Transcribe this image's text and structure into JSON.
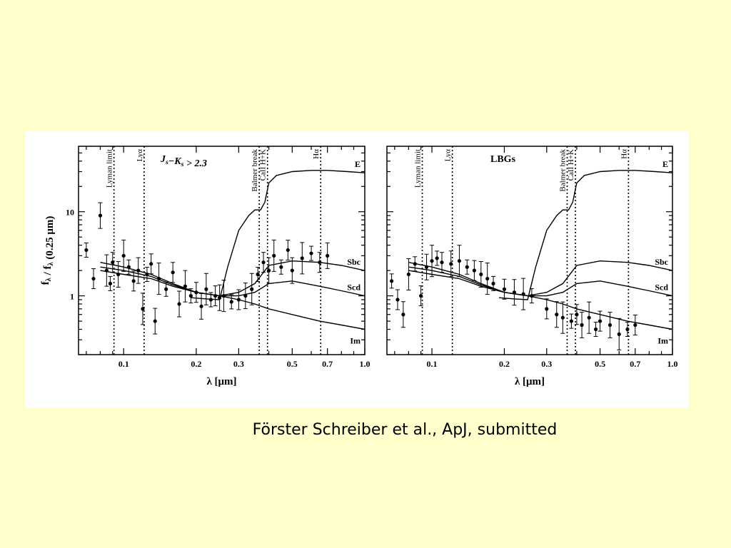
{
  "caption": "Förster Schreiber et al., ApJ, submitted",
  "chart_data": [
    {
      "type": "scatter",
      "title": "J_s−K_s > 2.3",
      "xlabel": "λ [μm]",
      "ylabel": "f_λ / f_λ (0.25 μm)",
      "x_scale": "log",
      "y_scale": "log",
      "xlim": [
        0.065,
        1.0
      ],
      "ylim": [
        0.2,
        60
      ],
      "x_ticks": [
        0.1,
        0.2,
        0.3,
        0.5,
        0.7,
        1.0
      ],
      "x_tick_labels": [
        "0.1",
        "0.2",
        "0.3",
        "0.5",
        "0.7",
        "1.0"
      ],
      "y_ticks": [
        1,
        10
      ],
      "y_tick_labels": [
        "1",
        "10"
      ],
      "feature_lines": [
        {
          "x": 0.0912,
          "label": "Lyman limit"
        },
        {
          "x": 0.1216,
          "label": "Lyα"
        },
        {
          "x": 0.365,
          "label": "Balmer break"
        },
        {
          "x": 0.395,
          "label": "CaII H+K"
        },
        {
          "x": 0.6563,
          "label": "Hα"
        }
      ],
      "templates": [
        {
          "name": "E",
          "x": [
            0.19,
            0.22,
            0.25,
            0.27,
            0.3,
            0.33,
            0.35,
            0.37,
            0.385,
            0.4,
            0.43,
            0.5,
            0.6,
            0.7,
            0.85,
            1.0
          ],
          "y": [
            0.95,
            0.92,
            0.9,
            2.2,
            6.0,
            9.0,
            10.5,
            10.5,
            13.0,
            22.0,
            27.0,
            30.0,
            31.0,
            31.0,
            30.0,
            29.0
          ]
        },
        {
          "name": "Sbc",
          "x": [
            0.08,
            0.1,
            0.13,
            0.16,
            0.2,
            0.25,
            0.3,
            0.35,
            0.4,
            0.5,
            0.65,
            0.8,
            1.0
          ],
          "y": [
            2.5,
            2.2,
            1.8,
            1.4,
            1.1,
            1.0,
            1.1,
            1.4,
            2.3,
            2.6,
            2.5,
            2.3,
            2.0
          ]
        },
        {
          "name": "Scd",
          "x": [
            0.08,
            0.1,
            0.13,
            0.16,
            0.2,
            0.25,
            0.3,
            0.35,
            0.4,
            0.5,
            0.65,
            0.8,
            1.0
          ],
          "y": [
            2.2,
            2.0,
            1.7,
            1.35,
            1.1,
            1.0,
            1.0,
            1.1,
            1.4,
            1.5,
            1.3,
            1.15,
            1.0
          ]
        },
        {
          "name": "Im",
          "x": [
            0.08,
            0.1,
            0.13,
            0.16,
            0.2,
            0.25,
            0.3,
            0.35,
            0.4,
            0.5,
            0.65,
            0.8,
            1.0
          ],
          "y": [
            2.0,
            1.8,
            1.6,
            1.3,
            1.1,
            1.0,
            0.9,
            0.8,
            0.7,
            0.6,
            0.5,
            0.45,
            0.4
          ]
        }
      ],
      "points": {
        "x": [
          0.07,
          0.075,
          0.08,
          0.085,
          0.088,
          0.09,
          0.095,
          0.1,
          0.105,
          0.11,
          0.115,
          0.12,
          0.125,
          0.13,
          0.135,
          0.14,
          0.15,
          0.16,
          0.17,
          0.18,
          0.19,
          0.2,
          0.21,
          0.22,
          0.23,
          0.24,
          0.25,
          0.26,
          0.28,
          0.3,
          0.32,
          0.34,
          0.36,
          0.38,
          0.4,
          0.42,
          0.45,
          0.48,
          0.5,
          0.55,
          0.6,
          0.65,
          0.7
        ],
        "y": [
          3.5,
          1.6,
          9.0,
          2.0,
          1.4,
          2.5,
          1.8,
          3.0,
          2.2,
          1.5,
          2.0,
          0.7,
          1.8,
          2.4,
          0.5,
          1.6,
          1.2,
          1.9,
          0.8,
          1.3,
          1.0,
          1.1,
          0.75,
          1.2,
          0.9,
          1.0,
          0.95,
          1.0,
          0.85,
          0.9,
          1.0,
          1.2,
          1.8,
          2.5,
          2.0,
          3.0,
          2.2,
          3.5,
          2.0,
          2.8,
          3.2,
          2.5,
          3.0
        ]
      }
    },
    {
      "type": "scatter",
      "title": "LBGs",
      "xlabel": "λ [μm]",
      "x_scale": "log",
      "y_scale": "log",
      "xlim": [
        0.065,
        1.0
      ],
      "ylim": [
        0.2,
        60
      ],
      "x_ticks": [
        0.1,
        0.2,
        0.3,
        0.5,
        0.7,
        1.0
      ],
      "x_tick_labels": [
        "0.1",
        "0.2",
        "0.3",
        "0.5",
        "0.7",
        "1.0"
      ],
      "y_ticks": [
        1,
        10
      ],
      "feature_lines": [
        {
          "x": 0.0912,
          "label": "Lyman limit"
        },
        {
          "x": 0.1216,
          "label": "Lyα"
        },
        {
          "x": 0.365,
          "label": "Balmer break"
        },
        {
          "x": 0.395,
          "label": "CaII H+K"
        },
        {
          "x": 0.6563,
          "label": "Hα"
        }
      ],
      "templates": [
        {
          "name": "E",
          "x": [
            0.19,
            0.22,
            0.25,
            0.27,
            0.3,
            0.33,
            0.35,
            0.37,
            0.385,
            0.4,
            0.43,
            0.5,
            0.6,
            0.7,
            0.85,
            1.0
          ],
          "y": [
            0.95,
            0.92,
            0.9,
            2.2,
            6.0,
            9.0,
            10.5,
            10.5,
            13.0,
            22.0,
            27.0,
            30.0,
            31.0,
            31.0,
            30.0,
            29.0
          ]
        },
        {
          "name": "Sbc",
          "x": [
            0.08,
            0.1,
            0.13,
            0.16,
            0.2,
            0.25,
            0.3,
            0.35,
            0.4,
            0.5,
            0.65,
            0.8,
            1.0
          ],
          "y": [
            2.5,
            2.2,
            1.8,
            1.4,
            1.1,
            1.0,
            1.1,
            1.4,
            2.3,
            2.6,
            2.5,
            2.3,
            2.0
          ]
        },
        {
          "name": "Scd",
          "x": [
            0.08,
            0.1,
            0.13,
            0.16,
            0.2,
            0.25,
            0.3,
            0.35,
            0.4,
            0.5,
            0.65,
            0.8,
            1.0
          ],
          "y": [
            2.2,
            2.0,
            1.7,
            1.35,
            1.1,
            1.0,
            1.0,
            1.1,
            1.4,
            1.5,
            1.3,
            1.15,
            1.0
          ]
        },
        {
          "name": "Im",
          "x": [
            0.08,
            0.1,
            0.13,
            0.16,
            0.2,
            0.25,
            0.3,
            0.35,
            0.4,
            0.5,
            0.65,
            0.8,
            1.0
          ],
          "y": [
            2.0,
            1.8,
            1.6,
            1.3,
            1.1,
            1.0,
            0.9,
            0.8,
            0.7,
            0.6,
            0.5,
            0.45,
            0.4
          ]
        }
      ],
      "points": {
        "x": [
          0.068,
          0.072,
          0.076,
          0.08,
          0.085,
          0.09,
          0.095,
          0.1,
          0.105,
          0.11,
          0.12,
          0.13,
          0.14,
          0.15,
          0.16,
          0.17,
          0.18,
          0.2,
          0.22,
          0.24,
          0.26,
          0.3,
          0.33,
          0.35,
          0.38,
          0.4,
          0.42,
          0.45,
          0.48,
          0.5,
          0.55,
          0.6,
          0.65,
          0.7
        ],
        "y": [
          1.5,
          0.9,
          0.6,
          1.8,
          2.4,
          1.0,
          2.2,
          2.6,
          2.8,
          2.5,
          2.4,
          2.6,
          2.2,
          2.0,
          1.8,
          1.6,
          1.4,
          1.2,
          1.1,
          1.05,
          1.0,
          0.7,
          0.6,
          0.55,
          0.5,
          0.6,
          0.45,
          0.55,
          0.4,
          0.5,
          0.45,
          0.35,
          0.4,
          0.45
        ]
      }
    }
  ]
}
